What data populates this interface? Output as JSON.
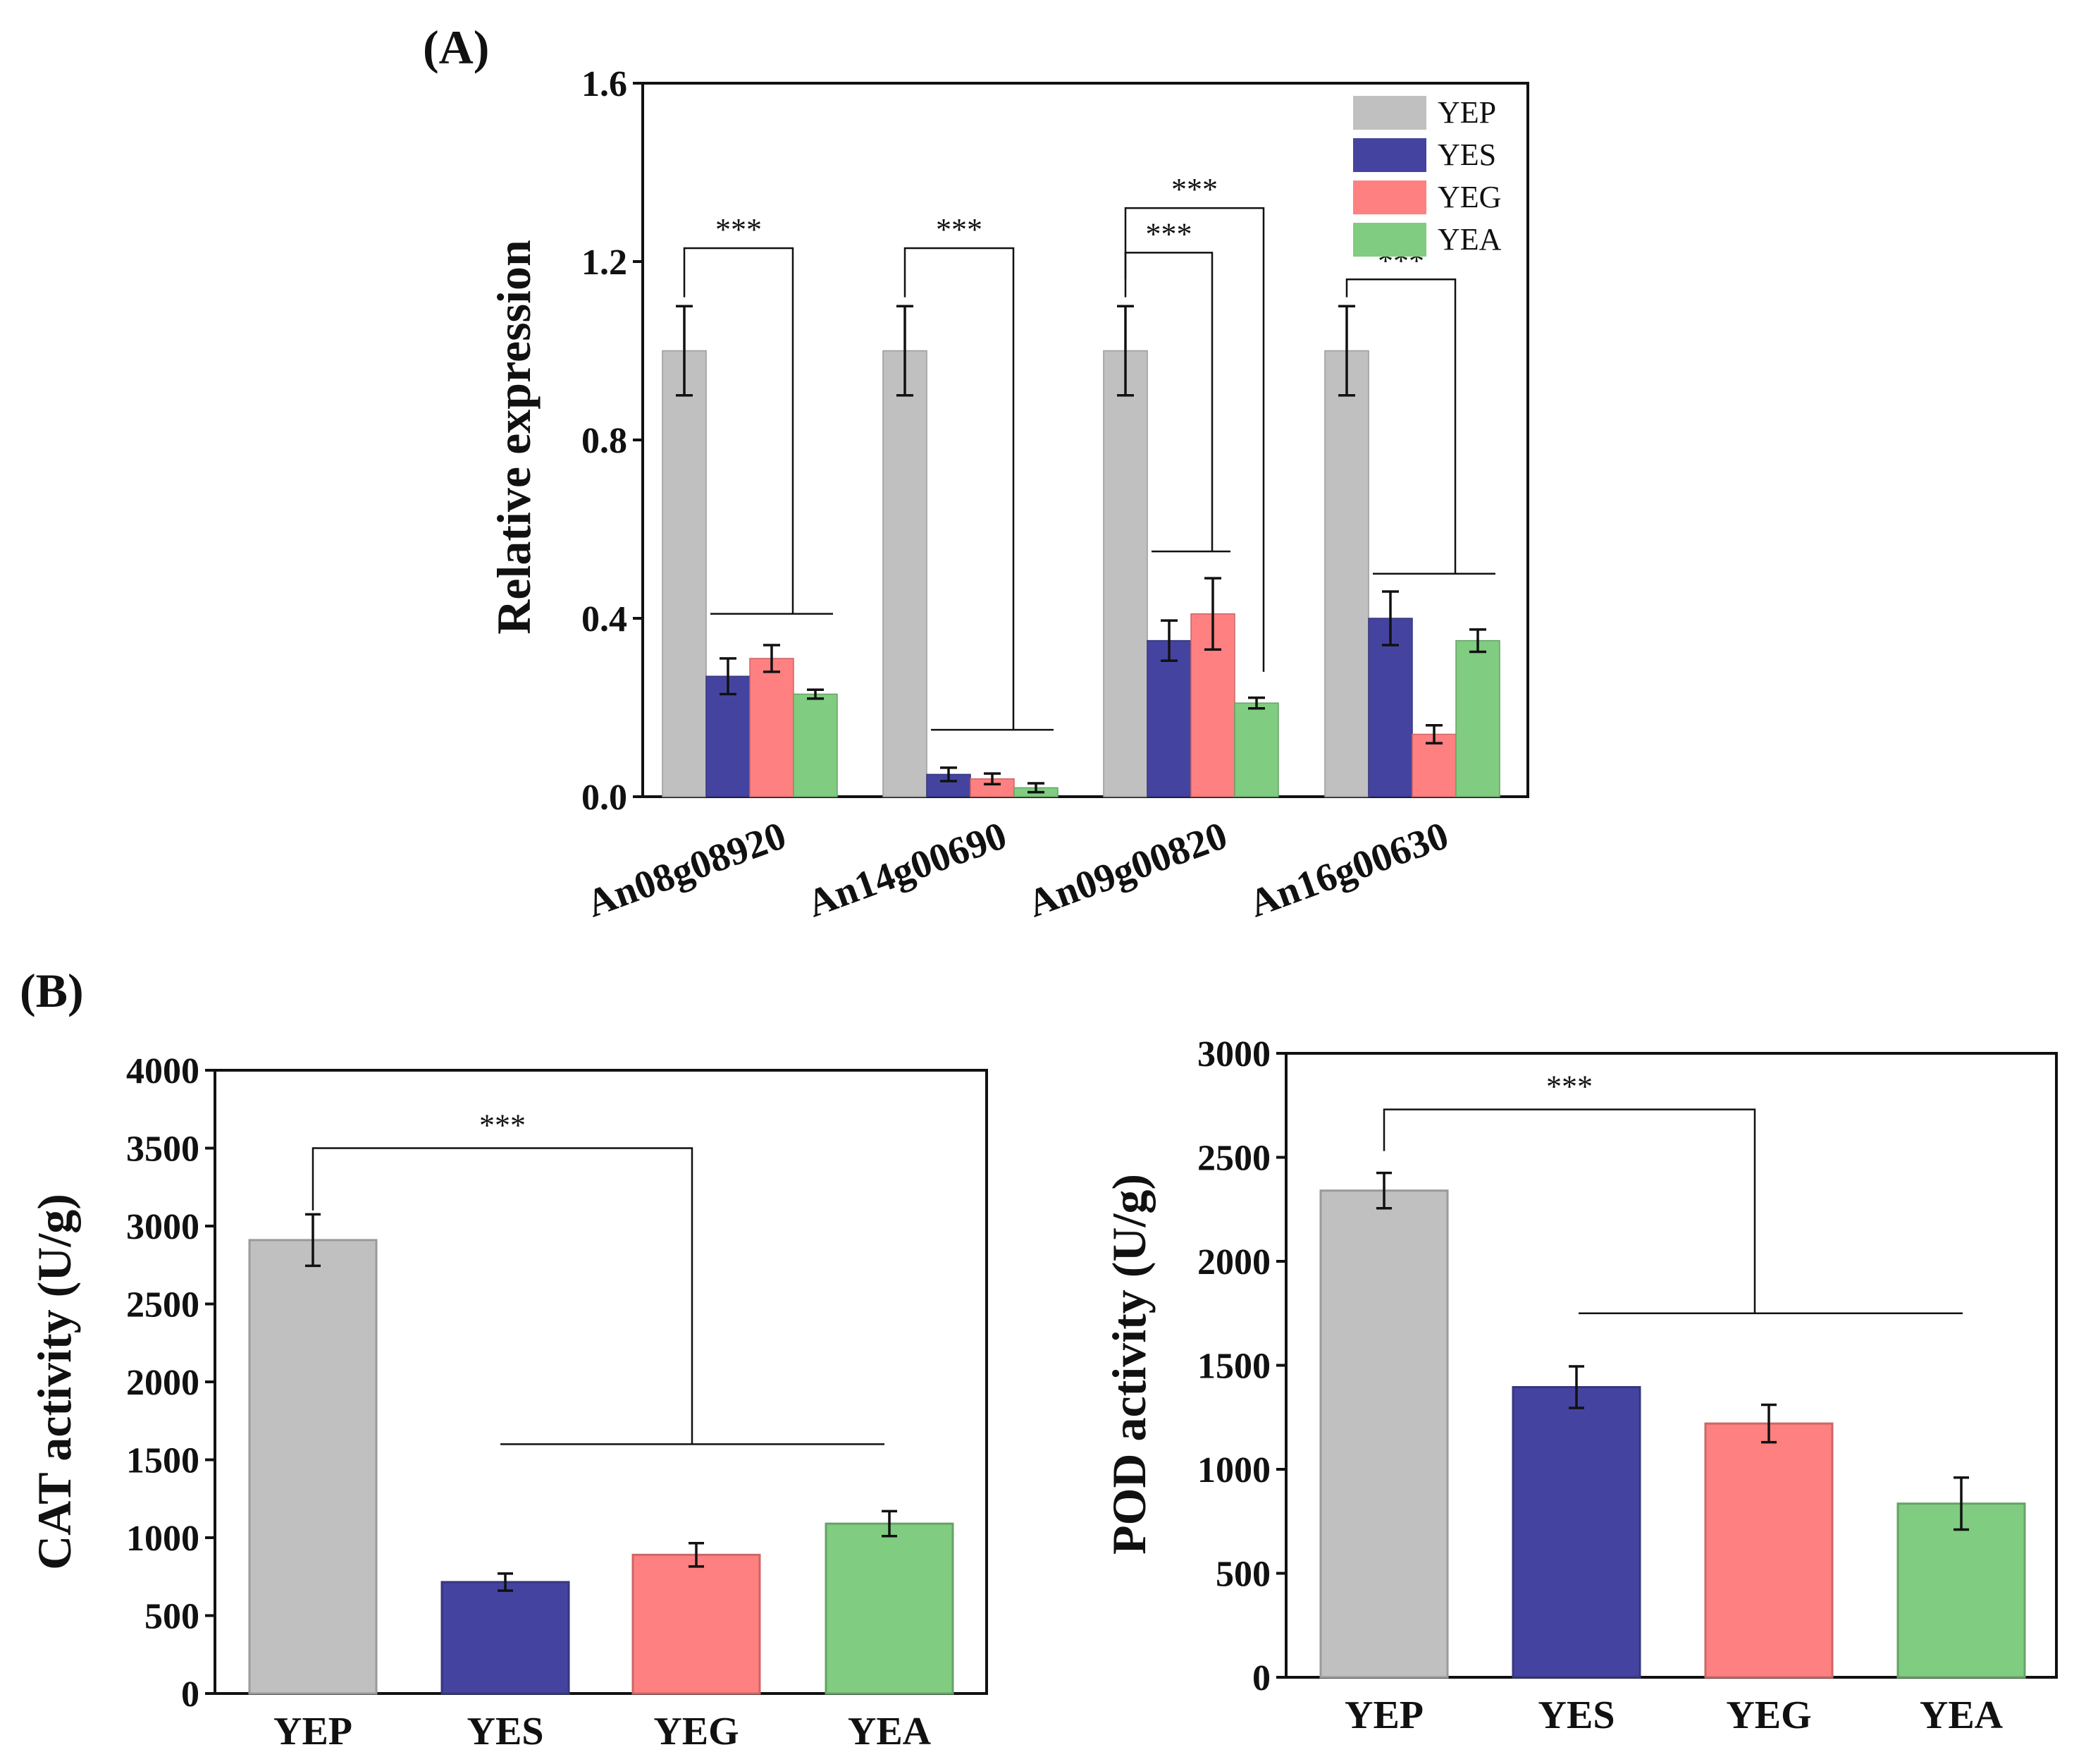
{
  "panel_labels": {
    "a": "(A)",
    "b": "(B)"
  },
  "significance": "***",
  "chart_data": [
    {
      "id": "gene",
      "type": "bar",
      "title": "",
      "xlabel": "",
      "ylabel": "Relative expression",
      "ylim": [
        0,
        1.6
      ],
      "yticks": [
        "0.0",
        "0.4",
        "0.8",
        "1.2",
        "1.6"
      ],
      "ytick_values": [
        0,
        0.4,
        0.8,
        1.2,
        1.6
      ],
      "legend_position": "top-right",
      "categories": [
        "An08g08920",
        "An14g00690",
        "An09g00820",
        "An16g00630"
      ],
      "series": [
        {
          "name": "YEP",
          "color": "#c0c0c0",
          "values": [
            1.0,
            1.0,
            1.0,
            1.0
          ],
          "errors": [
            0.1,
            0.1,
            0.1,
            0.1
          ]
        },
        {
          "name": "YES",
          "color": "#4444a0",
          "values": [
            0.27,
            0.05,
            0.35,
            0.4
          ],
          "errors": [
            0.04,
            0.015,
            0.045,
            0.06
          ]
        },
        {
          "name": "YEG",
          "color": "#ff8080",
          "values": [
            0.31,
            0.04,
            0.41,
            0.14
          ],
          "errors": [
            0.03,
            0.012,
            0.08,
            0.02
          ]
        },
        {
          "name": "YEA",
          "color": "#80cc80",
          "values": [
            0.23,
            0.02,
            0.21,
            0.35
          ],
          "errors": [
            0.01,
            0.01,
            0.012,
            0.025
          ]
        }
      ],
      "annotations": [
        {
          "text": "***",
          "group": 0
        },
        {
          "text": "***",
          "group": 1
        },
        {
          "text": "***",
          "group": 2,
          "vs": "YEA"
        },
        {
          "text": "***",
          "group": 2,
          "vs": "YES-YEG"
        },
        {
          "text": "***",
          "group": 3
        }
      ]
    },
    {
      "id": "cat",
      "type": "bar",
      "title": "",
      "xlabel": "",
      "ylabel": "CAT activity (U/g)",
      "ylim": [
        0,
        4000
      ],
      "yticks": [
        "0",
        "500",
        "1000",
        "1500",
        "2000",
        "2500",
        "3000",
        "3500",
        "4000"
      ],
      "ytick_values": [
        0,
        500,
        1000,
        1500,
        2000,
        2500,
        3000,
        3500,
        4000
      ],
      "categories": [
        "YEP",
        "YES",
        "YEG",
        "YEA"
      ],
      "colors": [
        "#c0c0c0",
        "#4444a0",
        "#ff8080",
        "#80cc80"
      ],
      "values": [
        2910,
        715,
        890,
        1090
      ],
      "errors": [
        165,
        55,
        75,
        80
      ],
      "annotation": "***"
    },
    {
      "id": "pod",
      "type": "bar",
      "title": "",
      "xlabel": "",
      "ylabel": "POD activity (U/g)",
      "ylim": [
        0,
        3000
      ],
      "yticks": [
        "0",
        "500",
        "1000",
        "1500",
        "2000",
        "2500",
        "3000"
      ],
      "ytick_values": [
        0,
        500,
        1000,
        1500,
        2000,
        2500,
        3000
      ],
      "categories": [
        "YEP",
        "YES",
        "YEG",
        "YEA"
      ],
      "colors": [
        "#c0c0c0",
        "#4444a0",
        "#ff8080",
        "#80cc80"
      ],
      "values": [
        2340,
        1395,
        1220,
        835
      ],
      "errors": [
        85,
        100,
        90,
        125
      ],
      "annotation": "***"
    }
  ]
}
